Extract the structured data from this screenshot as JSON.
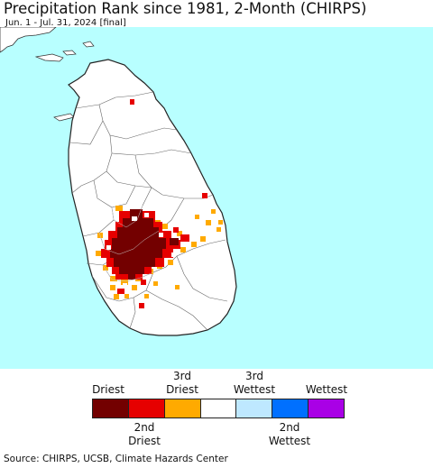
{
  "header": {
    "title": "Precipitation Rank since 1981, 2-Month (CHIRPS)",
    "subtitle": "Jun. 1 - Jul. 31, 2024 [final]"
  },
  "colors": {
    "ocean": "#b8ffff",
    "land": "#ffffff",
    "border": "#555555",
    "rank_driest": "#730000",
    "rank_2nd_driest": "#e60000",
    "rank_3rd_driest": "#ffaa00",
    "rank_normal": "#ffffff",
    "rank_3rd_wettest": "#bee8ff",
    "rank_2nd_wettest": "#0070ff",
    "rank_wettest": "#a900e6"
  },
  "legend": {
    "top_labels": [
      "Driest",
      "3rd\nDriest",
      "3rd\nWettest",
      "Wettest"
    ],
    "bottom_labels": [
      "2nd\nDriest",
      "2nd\nWettest"
    ],
    "swatches": [
      "rank_driest",
      "rank_2nd_driest",
      "rank_3rd_driest",
      "rank_normal",
      "rank_3rd_wettest",
      "rank_2nd_wettest",
      "rank_wettest"
    ]
  },
  "footer": {
    "source": "Source: CHIRPS, UCSB, Climate Hazards Center"
  }
}
